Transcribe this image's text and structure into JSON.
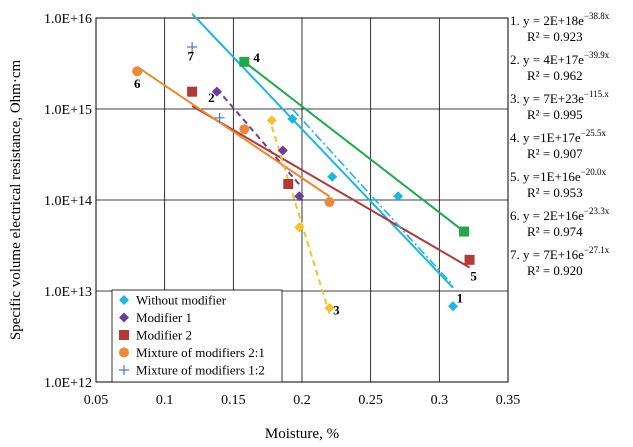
{
  "chart_data": {
    "type": "scatter",
    "title": "",
    "xlabel": "Moisture, %",
    "ylabel": "Specific volume electrical resistance, Ohm·cm",
    "xlim": [
      0.05,
      0.35
    ],
    "ylim": [
      1000000000000.0,
      1e+16
    ],
    "y_scale": "log",
    "grid": true,
    "legend_position": "bottom-left",
    "x_ticks": [
      "0.05",
      "0.1",
      "0.15",
      "0.2",
      "0.25",
      "0.3",
      "0.35"
    ],
    "y_ticks": [
      "1.0E+12",
      "1.0E+13",
      "1.0E+14",
      "1.0E+15",
      "1.0E+16"
    ],
    "series": [
      {
        "name": "Without modifier",
        "marker": "diamond",
        "color": "#1fb5e0",
        "x": [
          0.193,
          0.222,
          0.27,
          0.31
        ],
        "y": [
          780000000000000.0,
          180000000000000.0,
          110000000000000.0,
          6800000000000.0
        ],
        "trend": {
          "x0": 0.12,
          "x1": 0.31,
          "dash": ""
        }
      },
      {
        "name": "Modifier 1",
        "marker": "diamond",
        "color": "#6a3f9b",
        "x": [
          0.138,
          0.186,
          0.198
        ],
        "y": [
          1550000000000000.0,
          350000000000000.0,
          110000000000000.0
        ],
        "trend": {
          "x0": 0.138,
          "x1": 0.198,
          "dash": "6,4"
        }
      },
      {
        "name": "Modifier 2",
        "marker": "square",
        "color": "#b03a3a",
        "x": [
          0.12,
          0.19,
          0.322
        ],
        "y": [
          1550000000000000.0,
          150000000000000.0,
          22000000000000.0
        ],
        "trend": {
          "x0": 0.12,
          "x1": 0.322,
          "dash": ""
        }
      },
      {
        "name": "Mixture of modifiers 2:1",
        "marker": "circle",
        "color": "#e88a38",
        "x": [
          0.08,
          0.158,
          0.22
        ],
        "y": [
          2600000000000000.0,
          600000000000000.0,
          95000000000000.0
        ],
        "trend": {
          "x0": 0.08,
          "x1": 0.22,
          "dash": ""
        }
      },
      {
        "name": "Mixture of modifiers 1:2",
        "marker": "plus",
        "color": "#4c78c8",
        "x": [
          0.12,
          0.14
        ],
        "y": [
          4800000000000000.0,
          800000000000000.0
        ],
        "trend": null
      },
      {
        "name": "",
        "marker": "square",
        "color": "#22a84a",
        "x": [
          0.158,
          0.318
        ],
        "y": [
          3300000000000000.0,
          45000000000000.0
        ],
        "trend": {
          "x0": 0.158,
          "x1": 0.318,
          "dash": ""
        }
      },
      {
        "name": "",
        "marker": "diamond",
        "color": "#f5c12e",
        "x": [
          0.178,
          0.198,
          0.22
        ],
        "y": [
          750000000000000.0,
          50000000000000.0,
          6500000000000.0
        ],
        "trend": {
          "x0": 0.178,
          "x1": 0.22,
          "dash": "6,4"
        }
      }
    ],
    "extra_trend": {
      "x0": 0.193,
      "x1": 0.31,
      "y0": 1000000000000000.0,
      "y1": 11500000000000.0,
      "color": "#1fb5e0",
      "dash": "9,3,2,3"
    },
    "annotations": [
      {
        "label": "1",
        "x": 0.315,
        "y": 7500000000000.0
      },
      {
        "label": "2",
        "x": 0.134,
        "y": 1200000000000000.0
      },
      {
        "label": "3",
        "x": 0.225,
        "y": 5500000000000.0
      },
      {
        "label": "4",
        "x": 0.167,
        "y": 3300000000000000.0
      },
      {
        "label": "5",
        "x": 0.325,
        "y": 13000000000000.0
      },
      {
        "label": "6",
        "x": 0.08,
        "y": 1700000000000000.0
      },
      {
        "label": "7",
        "x": 0.119,
        "y": 3400000000000000.0
      }
    ],
    "equations": [
      {
        "index": "1.",
        "base": "y = 2E+18e",
        "exp": "−38.8x",
        "r2": "R² = 0.923"
      },
      {
        "index": "2.",
        "base": "y = 4E+17e",
        "exp": "−39.9x",
        "r2": "R² = 0.962"
      },
      {
        "index": "3.",
        "base": "y = 7E+23e",
        "exp": "−115.x",
        "r2": "R² = 0.995"
      },
      {
        "index": "4.",
        "base": "y =1E+17e",
        "exp": "−25.5x",
        "r2": "R² = 0.907"
      },
      {
        "index": "5.",
        "base": "y =1E+16e",
        "exp": "−20.0x",
        "r2": "R² = 0.953"
      },
      {
        "index": "6.",
        "base": "y = 2E+16e",
        "exp": "−23.3x",
        "r2": "R² = 0.974"
      },
      {
        "index": "7.",
        "base": "y = 7E+16e",
        "exp": "−27.1x",
        "r2": "R² = 0.920"
      }
    ]
  }
}
